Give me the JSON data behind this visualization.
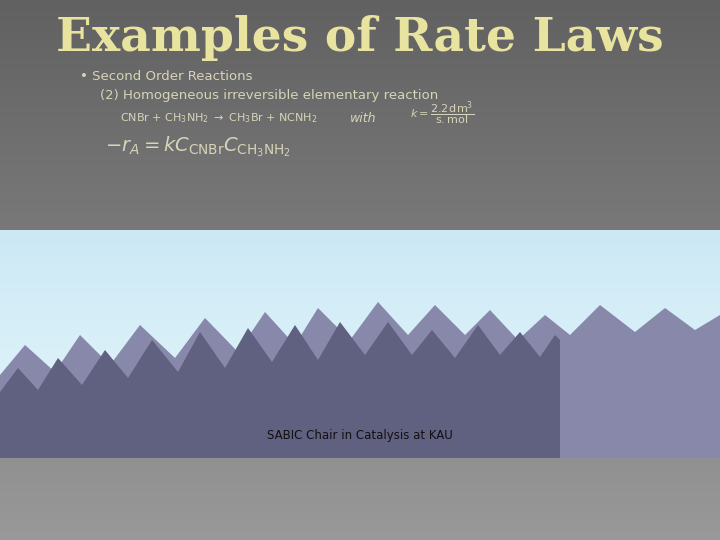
{
  "title": "Examples of Rate Laws",
  "title_color": "#e8e4a0",
  "title_fontsize": 34,
  "bullet_text": "• Second Order Reactions",
  "subtitle_text": "(2) Homogeneous irreversible elementary reaction",
  "footer_text": "SABIC Chair in Catalysis at KAU",
  "body_text_color": "#d8d4b8",
  "bg_gray_top": "#6a6a6a",
  "bg_gray_bottom": "#909090",
  "sky_top": "#cce8f4",
  "sky_bottom": "#eaf5fb",
  "mountain_back_color": "#8888aa",
  "mountain_front_color": "#606080",
  "purple_color": "#7030a0",
  "reaction_color": "#c8c4a8",
  "footer_color": "#111111"
}
